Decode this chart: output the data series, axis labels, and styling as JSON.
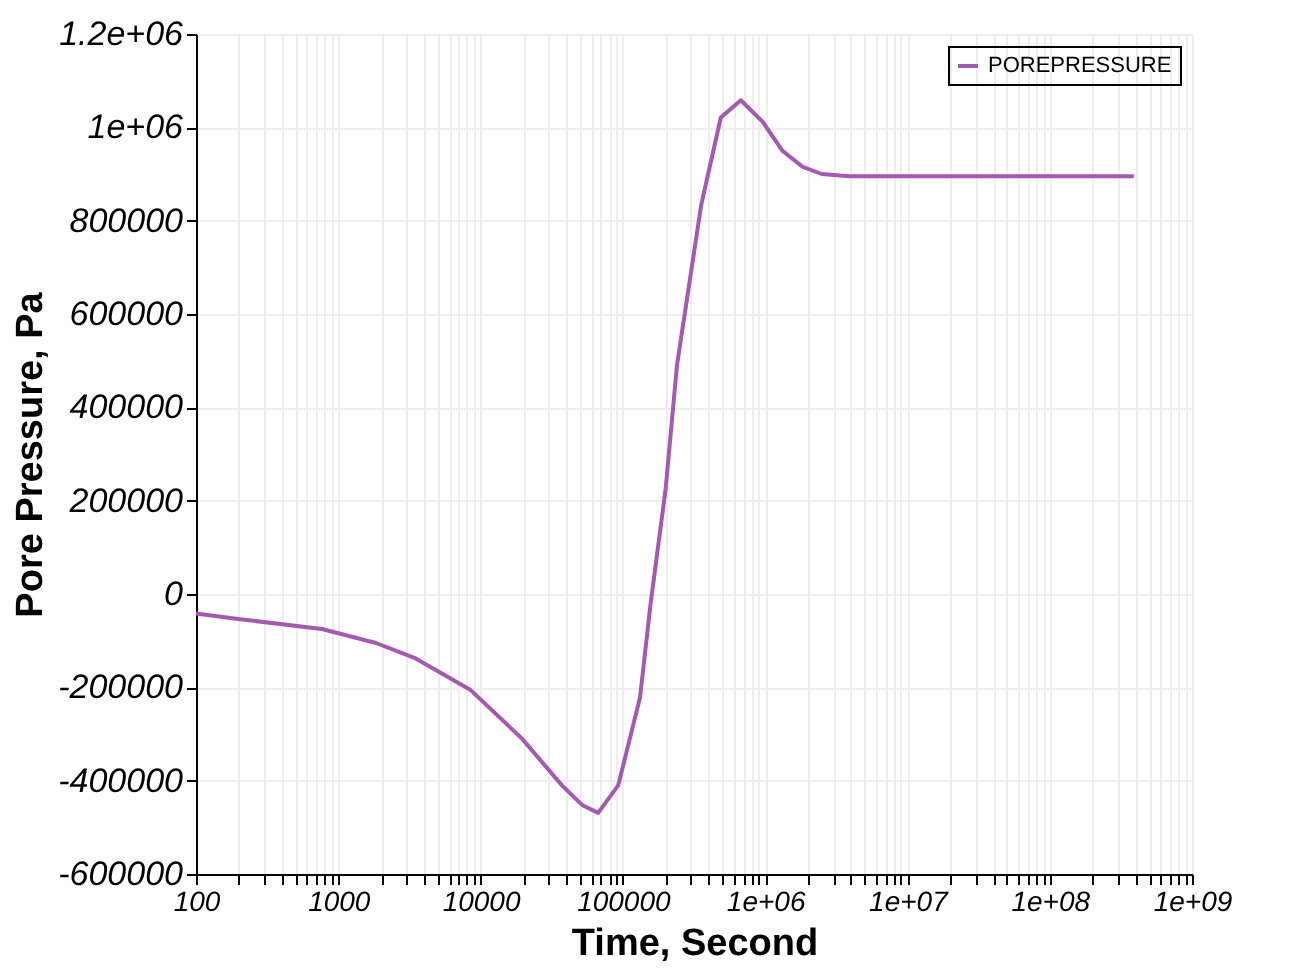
{
  "chart_data": {
    "type": "line",
    "xlabel": "Time, Second",
    "ylabel": "Pore Pressure, Pa",
    "log": "x",
    "grid": true,
    "legend": "top right",
    "line_style": "solid",
    "marker": "none",
    "x": [
      100,
      204,
      767,
      1840,
      3500,
      8450,
      19550,
      37300,
      51700,
      67000,
      92800,
      132000,
      156000,
      200000,
      240000,
      355000,
      488000,
      675000,
      960000,
      1320000,
      1820000,
      2500000,
      3900000,
      390000000
    ],
    "series": [
      {
        "name": "POREPRESSURE",
        "color": "#a45ab0",
        "values": [
          -42000,
          -54000,
          -75000,
          -105000,
          -138000,
          -205000,
          -310000,
          -410000,
          -452000,
          -469000,
          -410000,
          -222000,
          -25000,
          226000,
          490000,
          833000,
          1021000,
          1058000,
          1012000,
          950000,
          916000,
          900000,
          895000,
          895000
        ]
      }
    ],
    "xlim": [
      100,
      1000000000
    ],
    "xticks": [
      100,
      {
        "value": 200,
        "label": null
      },
      {
        "value": 300,
        "label": null
      },
      {
        "value": 400,
        "label": null
      },
      {
        "value": 500,
        "label": null
      },
      {
        "value": 600,
        "label": null
      },
      {
        "value": 700,
        "label": null
      },
      {
        "value": 800,
        "label": null
      },
      {
        "value": 900,
        "label": null
      },
      1000,
      {
        "value": 2000,
        "label": null
      },
      {
        "value": 3000,
        "label": null
      },
      {
        "value": 4000,
        "label": null
      },
      {
        "value": 5000,
        "label": null
      },
      {
        "value": 6000,
        "label": null
      },
      {
        "value": 7000,
        "label": null
      },
      {
        "value": 8000,
        "label": null
      },
      {
        "value": 9000,
        "label": null
      },
      10000,
      {
        "value": 20000,
        "label": null
      },
      {
        "value": 30000,
        "label": null
      },
      {
        "value": 40000,
        "label": null
      },
      {
        "value": 50000,
        "label": null
      },
      {
        "value": 60000,
        "label": null
      },
      {
        "value": 70000,
        "label": null
      },
      {
        "value": 80000,
        "label": null
      },
      {
        "value": 90000,
        "label": null
      },
      100000,
      {
        "value": 200000,
        "label": null
      },
      {
        "value": 300000,
        "label": null
      },
      {
        "value": 400000,
        "label": null
      },
      {
        "value": 500000,
        "label": null
      },
      {
        "value": 600000,
        "label": null
      },
      {
        "value": 700000,
        "label": null
      },
      {
        "value": 800000,
        "label": null
      },
      {
        "value": 900000,
        "label": null
      },
      {
        "value": 1000000,
        "label": "1e+06"
      },
      {
        "value": 2000000,
        "label": null
      },
      {
        "value": 3000000,
        "label": null
      },
      {
        "value": 4000000,
        "label": null
      },
      {
        "value": 5000000,
        "label": null
      },
      {
        "value": 6000000,
        "label": null
      },
      {
        "value": 7000000,
        "label": null
      },
      {
        "value": 8000000,
        "label": null
      },
      {
        "value": 9000000,
        "label": null
      },
      {
        "value": 10000000,
        "label": "1e+07"
      },
      {
        "value": 20000000,
        "label": null
      },
      {
        "value": 30000000,
        "label": null
      },
      {
        "value": 40000000,
        "label": null
      },
      {
        "value": 50000000,
        "label": null
      },
      {
        "value": 60000000,
        "label": null
      },
      {
        "value": 70000000,
        "label": null
      },
      {
        "value": 80000000,
        "label": null
      },
      {
        "value": 90000000,
        "label": null
      },
      {
        "value": 100000000,
        "label": "1e+08"
      },
      {
        "value": 200000000,
        "label": null
      },
      {
        "value": 300000000,
        "label": null
      },
      {
        "value": 400000000,
        "label": null
      },
      {
        "value": 500000000,
        "label": null
      },
      {
        "value": 600000000,
        "label": null
      },
      {
        "value": 700000000,
        "label": null
      },
      {
        "value": 800000000,
        "label": null
      },
      {
        "value": 900000000,
        "label": null
      },
      {
        "value": 1000000000,
        "label": "1e+09"
      }
    ],
    "ylim": [
      -600000,
      1200000
    ],
    "yticks": [
      -600000,
      -400000,
      -200000,
      0,
      200000,
      400000,
      600000,
      800000,
      {
        "value": 1000000,
        "label": "1e+06"
      },
      {
        "value": 1200000,
        "label": "1.2e+06"
      }
    ]
  }
}
